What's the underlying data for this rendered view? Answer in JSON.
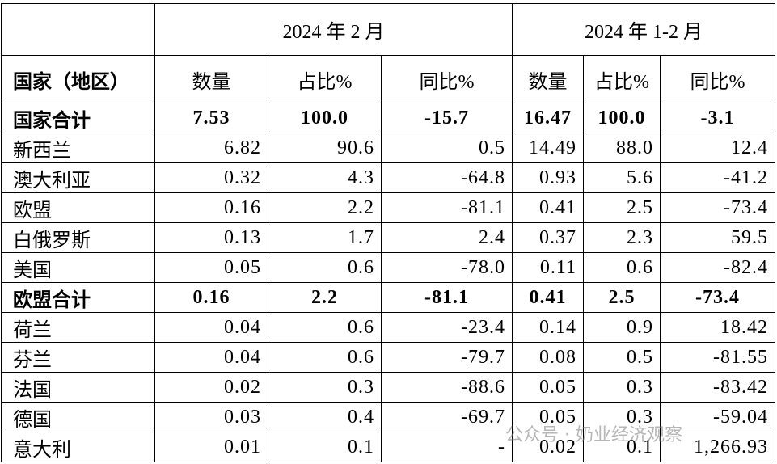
{
  "header": {
    "group_titles": [
      "2024 年 2 月",
      "2024 年 1-2 月"
    ],
    "columns": [
      "国家（地区）",
      "数量",
      "占比%",
      "同比%",
      "数量",
      "占比%",
      "同比%"
    ]
  },
  "rows": [
    {
      "bold": true,
      "cells": [
        "国家合计",
        "7.53",
        "100.0",
        "-15.7",
        "16.47",
        "100.0",
        "-3.1"
      ]
    },
    {
      "bold": false,
      "cells": [
        "新西兰",
        "6.82",
        "90.6",
        "0.5",
        "14.49",
        "88.0",
        "12.4"
      ]
    },
    {
      "bold": false,
      "cells": [
        "澳大利亚",
        "0.32",
        "4.3",
        "-64.8",
        "0.93",
        "5.6",
        "-41.2"
      ]
    },
    {
      "bold": false,
      "cells": [
        "欧盟",
        "0.16",
        "2.2",
        "-81.1",
        "0.41",
        "2.5",
        "-73.4"
      ]
    },
    {
      "bold": false,
      "cells": [
        "白俄罗斯",
        "0.13",
        "1.7",
        "2.4",
        "0.37",
        "2.3",
        "59.5"
      ]
    },
    {
      "bold": false,
      "cells": [
        "美国",
        "0.05",
        "0.6",
        "-78.0",
        "0.11",
        "0.6",
        "-82.4"
      ]
    },
    {
      "bold": true,
      "cells": [
        "欧盟合计",
        "0.16",
        "2.2",
        "-81.1",
        "0.41",
        "2.5",
        "-73.4"
      ]
    },
    {
      "bold": false,
      "cells": [
        "荷兰",
        "0.04",
        "0.6",
        "-23.4",
        "0.14",
        "0.9",
        "18.42"
      ]
    },
    {
      "bold": false,
      "cells": [
        "芬兰",
        "0.04",
        "0.6",
        "-79.7",
        "0.08",
        "0.5",
        "-81.55"
      ]
    },
    {
      "bold": false,
      "cells": [
        "法国",
        "0.02",
        "0.3",
        "-88.6",
        "0.05",
        "0.3",
        "-83.42"
      ]
    },
    {
      "bold": false,
      "cells": [
        "德国",
        "0.03",
        "0.4",
        "-69.7",
        "0.05",
        "0.3",
        "-59.04"
      ]
    },
    {
      "bold": false,
      "cells": [
        "意大利",
        "0.01",
        "0.1",
        "-",
        "0.02",
        "0.1",
        "1,266.93"
      ]
    }
  ],
  "watermark": "公众号 · 奶业经济观察"
}
